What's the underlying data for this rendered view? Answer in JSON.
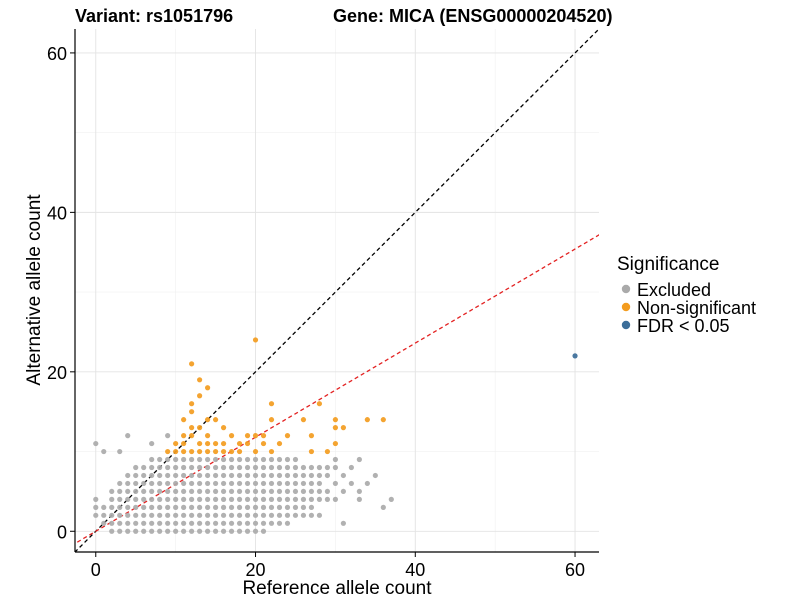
{
  "chart_data": {
    "type": "scatter",
    "title_left": "Variant: rs1051796",
    "title_right": "Gene: MICA (ENSG00000204520)",
    "xlabel": "Reference allele count",
    "ylabel": "Alternative allele count",
    "xlim": [
      -2.6,
      63
    ],
    "ylim": [
      -2.6,
      63
    ],
    "x_ticks": [
      0,
      20,
      40,
      60
    ],
    "y_ticks": [
      0,
      20,
      40,
      60
    ],
    "grid": true,
    "legend": {
      "title": "Significance",
      "position": "right",
      "entries": [
        {
          "label": "Excluded",
          "color": "#aaaaaa"
        },
        {
          "label": "Non-significant",
          "color": "#f39c1f"
        },
        {
          "label": "FDR < 0.05",
          "color": "#3c6e99"
        }
      ]
    },
    "reference_lines": [
      {
        "name": "identity",
        "slope": 1,
        "intercept": 0,
        "color": "#000000",
        "style": "dashed"
      },
      {
        "name": "fitted",
        "slope": 0.59,
        "intercept": 0,
        "color": "#e32222",
        "style": "dashed"
      }
    ],
    "series": [
      {
        "name": "Excluded",
        "color": "#aaaaaa",
        "points": [
          [
            0,
            11
          ],
          [
            1,
            10
          ],
          [
            0,
            4
          ],
          [
            0,
            3
          ],
          [
            0,
            2
          ],
          [
            1,
            2
          ],
          [
            1,
            1
          ],
          [
            1,
            3
          ],
          [
            2,
            0
          ],
          [
            2,
            1
          ],
          [
            2,
            2
          ],
          [
            2,
            3
          ],
          [
            2,
            4
          ],
          [
            2,
            5
          ],
          [
            3,
            0
          ],
          [
            3,
            1
          ],
          [
            3,
            2
          ],
          [
            3,
            3
          ],
          [
            3,
            4
          ],
          [
            3,
            5
          ],
          [
            3,
            6
          ],
          [
            3,
            10
          ],
          [
            4,
            12
          ],
          [
            4,
            0
          ],
          [
            4,
            1
          ],
          [
            4,
            2
          ],
          [
            4,
            3
          ],
          [
            4,
            4
          ],
          [
            4,
            5
          ],
          [
            4,
            6
          ],
          [
            4,
            7
          ],
          [
            5,
            0
          ],
          [
            5,
            1
          ],
          [
            5,
            2
          ],
          [
            5,
            3
          ],
          [
            5,
            4
          ],
          [
            5,
            5
          ],
          [
            5,
            6
          ],
          [
            5,
            7
          ],
          [
            5,
            8
          ],
          [
            6,
            0
          ],
          [
            6,
            1
          ],
          [
            6,
            2
          ],
          [
            6,
            3
          ],
          [
            6,
            4
          ],
          [
            6,
            5
          ],
          [
            6,
            6
          ],
          [
            6,
            7
          ],
          [
            6,
            8
          ],
          [
            7,
            0
          ],
          [
            7,
            1
          ],
          [
            7,
            2
          ],
          [
            7,
            3
          ],
          [
            7,
            4
          ],
          [
            7,
            5
          ],
          [
            7,
            6
          ],
          [
            7,
            7
          ],
          [
            7,
            8
          ],
          [
            7,
            9
          ],
          [
            7,
            11
          ],
          [
            8,
            0
          ],
          [
            8,
            1
          ],
          [
            8,
            2
          ],
          [
            8,
            3
          ],
          [
            8,
            4
          ],
          [
            8,
            5
          ],
          [
            8,
            6
          ],
          [
            8,
            7
          ],
          [
            8,
            8
          ],
          [
            8,
            9
          ],
          [
            9,
            0
          ],
          [
            9,
            1
          ],
          [
            9,
            2
          ],
          [
            9,
            3
          ],
          [
            9,
            4
          ],
          [
            9,
            5
          ],
          [
            9,
            6
          ],
          [
            9,
            7
          ],
          [
            9,
            8
          ],
          [
            9,
            9
          ],
          [
            9,
            12
          ],
          [
            10,
            0
          ],
          [
            10,
            1
          ],
          [
            10,
            2
          ],
          [
            10,
            3
          ],
          [
            10,
            4
          ],
          [
            10,
            5
          ],
          [
            10,
            6
          ],
          [
            10,
            7
          ],
          [
            10,
            8
          ],
          [
            10,
            9
          ],
          [
            11,
            0
          ],
          [
            11,
            1
          ],
          [
            11,
            2
          ],
          [
            11,
            3
          ],
          [
            11,
            4
          ],
          [
            11,
            5
          ],
          [
            11,
            6
          ],
          [
            11,
            7
          ],
          [
            11,
            8
          ],
          [
            11,
            9
          ],
          [
            12,
            0
          ],
          [
            12,
            1
          ],
          [
            12,
            2
          ],
          [
            12,
            3
          ],
          [
            12,
            4
          ],
          [
            12,
            5
          ],
          [
            12,
            6
          ],
          [
            12,
            7
          ],
          [
            12,
            8
          ],
          [
            12,
            9
          ],
          [
            13,
            0
          ],
          [
            13,
            1
          ],
          [
            13,
            2
          ],
          [
            13,
            3
          ],
          [
            13,
            4
          ],
          [
            13,
            5
          ],
          [
            13,
            6
          ],
          [
            13,
            7
          ],
          [
            13,
            8
          ],
          [
            13,
            9
          ],
          [
            14,
            0
          ],
          [
            14,
            1
          ],
          [
            14,
            2
          ],
          [
            14,
            3
          ],
          [
            14,
            4
          ],
          [
            14,
            5
          ],
          [
            14,
            6
          ],
          [
            14,
            7
          ],
          [
            14,
            8
          ],
          [
            14,
            9
          ],
          [
            15,
            0
          ],
          [
            15,
            1
          ],
          [
            15,
            2
          ],
          [
            15,
            3
          ],
          [
            15,
            4
          ],
          [
            15,
            5
          ],
          [
            15,
            6
          ],
          [
            15,
            7
          ],
          [
            15,
            8
          ],
          [
            15,
            9
          ],
          [
            16,
            0
          ],
          [
            16,
            1
          ],
          [
            16,
            2
          ],
          [
            16,
            3
          ],
          [
            16,
            4
          ],
          [
            16,
            5
          ],
          [
            16,
            6
          ],
          [
            16,
            7
          ],
          [
            16,
            8
          ],
          [
            16,
            9
          ],
          [
            17,
            0
          ],
          [
            17,
            1
          ],
          [
            17,
            2
          ],
          [
            17,
            3
          ],
          [
            17,
            4
          ],
          [
            17,
            5
          ],
          [
            17,
            6
          ],
          [
            17,
            7
          ],
          [
            17,
            8
          ],
          [
            17,
            9
          ],
          [
            18,
            0
          ],
          [
            18,
            1
          ],
          [
            18,
            2
          ],
          [
            18,
            3
          ],
          [
            18,
            4
          ],
          [
            18,
            5
          ],
          [
            18,
            6
          ],
          [
            18,
            7
          ],
          [
            18,
            8
          ],
          [
            18,
            9
          ],
          [
            19,
            0
          ],
          [
            19,
            1
          ],
          [
            19,
            2
          ],
          [
            19,
            3
          ],
          [
            19,
            4
          ],
          [
            19,
            5
          ],
          [
            19,
            6
          ],
          [
            19,
            7
          ],
          [
            19,
            8
          ],
          [
            19,
            9
          ],
          [
            20,
            0
          ],
          [
            20,
            1
          ],
          [
            20,
            2
          ],
          [
            20,
            3
          ],
          [
            20,
            4
          ],
          [
            20,
            5
          ],
          [
            20,
            6
          ],
          [
            20,
            7
          ],
          [
            20,
            8
          ],
          [
            20,
            9
          ],
          [
            21,
            0
          ],
          [
            21,
            1
          ],
          [
            21,
            2
          ],
          [
            21,
            3
          ],
          [
            21,
            4
          ],
          [
            21,
            5
          ],
          [
            21,
            6
          ],
          [
            21,
            7
          ],
          [
            21,
            8
          ],
          [
            21,
            9
          ],
          [
            22,
            1
          ],
          [
            22,
            2
          ],
          [
            22,
            3
          ],
          [
            22,
            4
          ],
          [
            22,
            5
          ],
          [
            22,
            6
          ],
          [
            22,
            7
          ],
          [
            22,
            8
          ],
          [
            22,
            9
          ],
          [
            23,
            1
          ],
          [
            23,
            2
          ],
          [
            23,
            3
          ],
          [
            23,
            4
          ],
          [
            23,
            5
          ],
          [
            23,
            6
          ],
          [
            23,
            7
          ],
          [
            23,
            8
          ],
          [
            23,
            9
          ],
          [
            24,
            1
          ],
          [
            24,
            2
          ],
          [
            24,
            3
          ],
          [
            24,
            4
          ],
          [
            24,
            5
          ],
          [
            24,
            6
          ],
          [
            24,
            7
          ],
          [
            24,
            8
          ],
          [
            24,
            9
          ],
          [
            25,
            2
          ],
          [
            25,
            3
          ],
          [
            25,
            4
          ],
          [
            25,
            5
          ],
          [
            25,
            6
          ],
          [
            25,
            7
          ],
          [
            25,
            8
          ],
          [
            25,
            9
          ],
          [
            26,
            2
          ],
          [
            26,
            3
          ],
          [
            26,
            4
          ],
          [
            26,
            5
          ],
          [
            26,
            6
          ],
          [
            26,
            7
          ],
          [
            26,
            8
          ],
          [
            27,
            2
          ],
          [
            27,
            3
          ],
          [
            27,
            4
          ],
          [
            27,
            5
          ],
          [
            27,
            6
          ],
          [
            27,
            7
          ],
          [
            27,
            8
          ],
          [
            28,
            2
          ],
          [
            28,
            4
          ],
          [
            28,
            5
          ],
          [
            28,
            6
          ],
          [
            28,
            7
          ],
          [
            28,
            8
          ],
          [
            29,
            4
          ],
          [
            29,
            5
          ],
          [
            29,
            7
          ],
          [
            29,
            8
          ],
          [
            30,
            4
          ],
          [
            30,
            6
          ],
          [
            30,
            8
          ],
          [
            30,
            9
          ],
          [
            31,
            1
          ],
          [
            31,
            5
          ],
          [
            31,
            7
          ],
          [
            32,
            6
          ],
          [
            32,
            8
          ],
          [
            33,
            4
          ],
          [
            33,
            5
          ],
          [
            33,
            9
          ],
          [
            34,
            6
          ],
          [
            35,
            7
          ],
          [
            36,
            3
          ],
          [
            37,
            4
          ]
        ]
      },
      {
        "name": "Non-significant",
        "color": "#f39c1f",
        "points": [
          [
            9,
            10
          ],
          [
            10,
            10
          ],
          [
            10,
            11
          ],
          [
            11,
            10
          ],
          [
            11,
            11
          ],
          [
            11,
            12
          ],
          [
            11,
            14
          ],
          [
            12,
            10
          ],
          [
            12,
            12
          ],
          [
            12,
            13
          ],
          [
            12,
            15
          ],
          [
            12,
            16
          ],
          [
            12,
            21
          ],
          [
            13,
            10
          ],
          [
            13,
            11
          ],
          [
            13,
            13
          ],
          [
            13,
            17
          ],
          [
            13,
            19
          ],
          [
            14,
            10
          ],
          [
            14,
            11
          ],
          [
            14,
            12
          ],
          [
            14,
            14
          ],
          [
            14,
            18
          ],
          [
            15,
            10
          ],
          [
            15,
            11
          ],
          [
            15,
            14
          ],
          [
            16,
            10
          ],
          [
            16,
            11
          ],
          [
            16,
            13
          ],
          [
            17,
            10
          ],
          [
            17,
            12
          ],
          [
            18,
            10
          ],
          [
            18,
            11
          ],
          [
            19,
            11
          ],
          [
            19,
            12
          ],
          [
            20,
            10
          ],
          [
            20,
            12
          ],
          [
            20,
            24
          ],
          [
            21,
            11
          ],
          [
            21,
            12
          ],
          [
            22,
            10
          ],
          [
            22,
            14
          ],
          [
            22,
            16
          ],
          [
            23,
            11
          ],
          [
            24,
            12
          ],
          [
            26,
            14
          ],
          [
            27,
            10
          ],
          [
            27,
            12
          ],
          [
            28,
            16
          ],
          [
            29,
            10
          ],
          [
            30,
            11
          ],
          [
            30,
            13
          ],
          [
            30,
            14
          ],
          [
            31,
            13
          ],
          [
            34,
            14
          ],
          [
            36,
            14
          ]
        ]
      },
      {
        "name": "FDR < 0.05",
        "color": "#3c6e99",
        "points": [
          [
            60,
            22
          ]
        ]
      }
    ]
  }
}
